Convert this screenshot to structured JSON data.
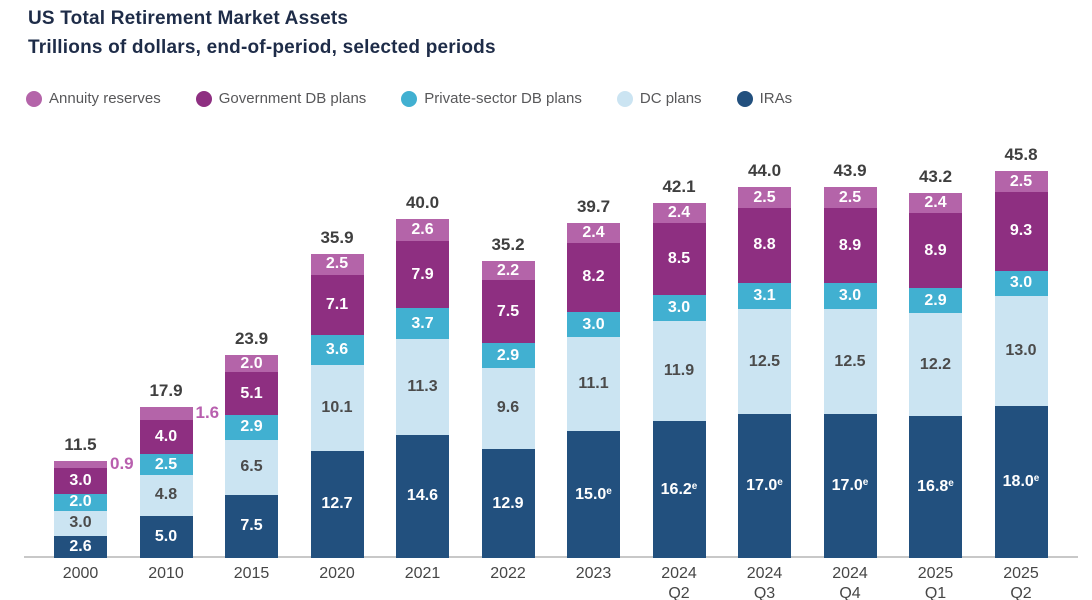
{
  "title": "US Total Retirement Market Assets",
  "subtitle": "Trillions of dollars, end-of-period, selected periods",
  "colors": {
    "annuity": "#b464a9",
    "government_db": "#8e2f81",
    "private_db": "#41b0d1",
    "dc_plans": "#cbe4f2",
    "iras": "#22507e",
    "title_text": "#1e2c48",
    "total_label_text": "#3f3f3f",
    "tick_text": "#464646",
    "legend_text": "#58585a",
    "axis_line": "#c8c8c8",
    "outside_label_text": "#b85fae"
  },
  "legend": [
    {
      "label": "Annuity reserves",
      "color": "#b464a9"
    },
    {
      "label": "Government DB plans",
      "color": "#8e2f81"
    },
    {
      "label": "Private-sector DB plans",
      "color": "#41b0d1"
    },
    {
      "label": "DC plans",
      "color": "#cbe4f2"
    },
    {
      "label": "IRAs",
      "color": "#22507e"
    }
  ],
  "chart_data": {
    "type": "bar",
    "stacked": true,
    "title": "US Total Retirement Market Assets",
    "subtitle": "Trillions of dollars, end-of-period, selected periods",
    "unit": "trillions of US dollars, end-of-period",
    "grid": false,
    "legend_position": "top",
    "estimate_marker": "e",
    "categories": [
      "2000",
      "2010",
      "2015",
      "2020",
      "2021",
      "2022",
      "2023",
      "2024 Q2",
      "2024 Q3",
      "2024 Q4",
      "2025 Q1",
      "2025 Q2"
    ],
    "totals": [
      11.5,
      17.9,
      23.9,
      35.9,
      40.0,
      35.2,
      39.7,
      42.1,
      44.0,
      43.9,
      43.2,
      45.8
    ],
    "series": [
      {
        "name": "IRAs",
        "color": "#22507e",
        "label_color": "#ffffff",
        "values": [
          2.6,
          5.0,
          7.5,
          12.7,
          14.6,
          12.9,
          15.0,
          16.2,
          17.0,
          17.0,
          16.8,
          18.0
        ],
        "estimated": [
          false,
          false,
          false,
          false,
          false,
          false,
          true,
          true,
          true,
          true,
          true,
          true
        ]
      },
      {
        "name": "DC plans",
        "color": "#cbe4f2",
        "label_color": "#4b4b4b",
        "values": [
          3.0,
          4.8,
          6.5,
          10.1,
          11.3,
          9.6,
          11.1,
          11.9,
          12.5,
          12.5,
          12.2,
          13.0
        ]
      },
      {
        "name": "Private-sector DB plans",
        "color": "#41b0d1",
        "label_color": "#ffffff",
        "values": [
          2.0,
          2.5,
          2.9,
          3.6,
          3.7,
          2.9,
          3.0,
          3.0,
          3.1,
          3.0,
          2.9,
          3.0
        ]
      },
      {
        "name": "Government DB plans",
        "color": "#8e2f81",
        "label_color": "#ffffff",
        "values": [
          3.0,
          4.0,
          5.1,
          7.1,
          7.9,
          7.5,
          8.2,
          8.5,
          8.8,
          8.9,
          8.9,
          9.3
        ]
      },
      {
        "name": "Annuity reserves",
        "color": "#b464a9",
        "label_color": "#ffffff",
        "values": [
          0.9,
          1.6,
          2.0,
          2.5,
          2.6,
          2.2,
          2.4,
          2.4,
          2.5,
          2.5,
          2.4,
          2.5
        ],
        "label_outside_indexes": [
          0,
          1
        ]
      }
    ]
  }
}
